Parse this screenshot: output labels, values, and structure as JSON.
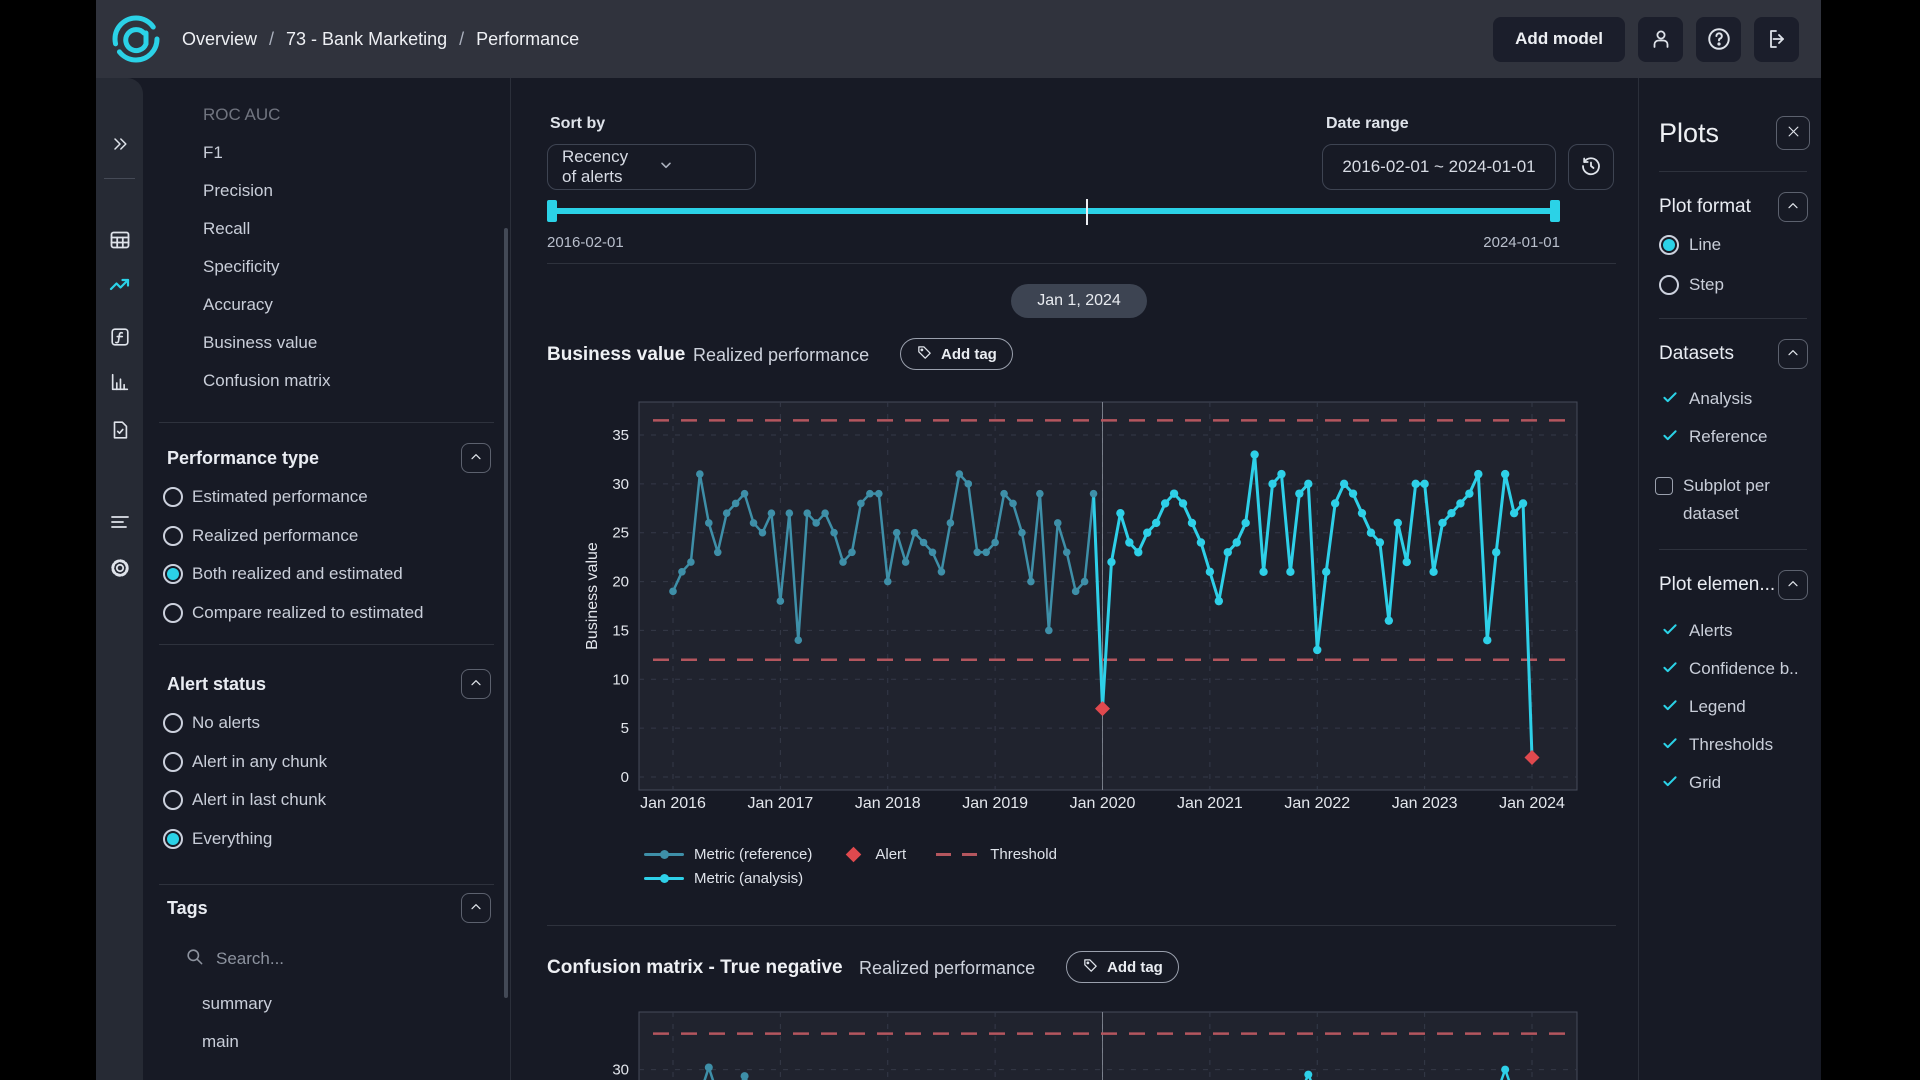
{
  "colors": {
    "accent": "#2bd2e7",
    "alert": "#e0494e",
    "threshold": "#b4565e",
    "reference_line": "#3e8fa8",
    "analysis_line": "#2ed0e8"
  },
  "navbar": {
    "breadcrumb": [
      "Overview",
      "73 - Bank Marketing",
      "Performance"
    ],
    "separator": "/",
    "add_model": "Add model",
    "icons": [
      "user-icon",
      "help-icon",
      "logout-icon"
    ]
  },
  "rail": {
    "expand_icon": "double-chevron-right",
    "top_icons": [
      "data-grid",
      "monitoring-trend",
      "functions",
      "bar-chart",
      "report-check"
    ],
    "bottom_icons": [
      "list-lines",
      "settings-gear"
    ],
    "active": "monitoring-trend"
  },
  "filters": {
    "metrics": [
      "ROC AUC",
      "F1",
      "Precision",
      "Recall",
      "Specificity",
      "Accuracy",
      "Business value",
      "Confusion matrix"
    ],
    "performance_type": {
      "title": "Performance type",
      "options": [
        "Estimated performance",
        "Realized performance",
        "Both realized and estimated",
        "Compare realized to estimated"
      ],
      "selected": "Both realized and estimated"
    },
    "alert_status": {
      "title": "Alert status",
      "options": [
        "No alerts",
        "Alert in any chunk",
        "Alert in last chunk",
        "Everything"
      ],
      "selected": "Everything"
    },
    "tags": {
      "title": "Tags",
      "search_placeholder": "Search...",
      "items": [
        "summary",
        "main"
      ]
    }
  },
  "toolbar": {
    "sort_by": {
      "label": "Sort by",
      "value": "Recency of alerts"
    },
    "date_range": {
      "label": "Date range",
      "value": "2016-02-01 ~ 2024-01-01"
    }
  },
  "timeline": {
    "start_label": "2016-02-01",
    "end_label": "2024-01-01",
    "marker_chip": "Jan 1, 2024"
  },
  "plots_panel": {
    "title": "Plots",
    "plot_format": {
      "title": "Plot format",
      "options": [
        "Line",
        "Step"
      ],
      "selected": "Line"
    },
    "datasets": {
      "title": "Datasets",
      "checked": [
        "Analysis",
        "Reference"
      ],
      "subplot_label": "Subplot per dataset",
      "subplot_checked": false
    },
    "plot_elements": {
      "title": "Plot elemen...",
      "items": [
        "Alerts",
        "Confidence b..",
        "Legend",
        "Thresholds",
        "Grid"
      ]
    }
  },
  "chart_data": [
    {
      "type": "line",
      "title": "Business value",
      "subtitle": "Realized performance",
      "add_tag_label": "Add tag",
      "ylabel": "Business value",
      "yticks": [
        0,
        5,
        10,
        15,
        20,
        25,
        30,
        35
      ],
      "ylim": [
        0,
        38.5
      ],
      "xticks": [
        "Jan 2016",
        "Jan 2017",
        "Jan 2018",
        "Jan 2019",
        "Jan 2020",
        "Jan 2021",
        "Jan 2022",
        "Jan 2023",
        "Jan 2024"
      ],
      "grid": true,
      "legend_position": "bottom",
      "series": [
        {
          "name": "Metric (reference)",
          "month_offset": 0,
          "values": [
            19,
            21,
            22,
            31,
            26,
            23,
            27,
            28,
            29,
            26,
            25,
            27,
            18,
            27,
            14,
            27,
            26,
            27,
            25,
            22,
            23,
            28,
            29,
            29,
            20,
            25,
            22,
            25,
            24,
            23,
            21,
            26,
            31,
            30,
            23,
            23,
            24,
            29,
            28,
            25,
            20,
            29,
            15,
            26,
            23,
            19,
            20,
            29
          ]
        },
        {
          "name": "Metric (analysis)",
          "month_offset": 48,
          "values": [
            7,
            22,
            27,
            24,
            23,
            25,
            26,
            28,
            29,
            28,
            26,
            24,
            21,
            18,
            23,
            24,
            26,
            33,
            21,
            30,
            31,
            21,
            29,
            30,
            13,
            21,
            28,
            30,
            29,
            27,
            25,
            24,
            16,
            26,
            22,
            30,
            30,
            21,
            26,
            27,
            28,
            29,
            31,
            14,
            23,
            31,
            27,
            28,
            2
          ]
        }
      ],
      "alerts": [
        {
          "month_index": 48,
          "value": 7
        },
        {
          "month_index": 96,
          "value": 2
        }
      ],
      "thresholds": {
        "upper": 36.5,
        "lower": 12
      },
      "split_month_index": 48,
      "legend": [
        "Metric (reference)",
        "Metric (analysis)",
        "Alert",
        "Threshold"
      ]
    },
    {
      "type": "line",
      "title": "Confusion matrix - True negative",
      "subtitle": "Realized performance",
      "add_tag_label": "Add tag",
      "partially_visible": true,
      "visible_ytick": 30,
      "thresholds": {
        "upper": 35
      },
      "split_month_index": 48,
      "visible_points": [
        {
          "month_index": 4,
          "value": 30.3
        },
        {
          "month_index": 8,
          "value": 29.1
        },
        {
          "month_index": 71,
          "value": 29.3
        },
        {
          "month_index": 93,
          "value": 30.0
        }
      ]
    }
  ]
}
